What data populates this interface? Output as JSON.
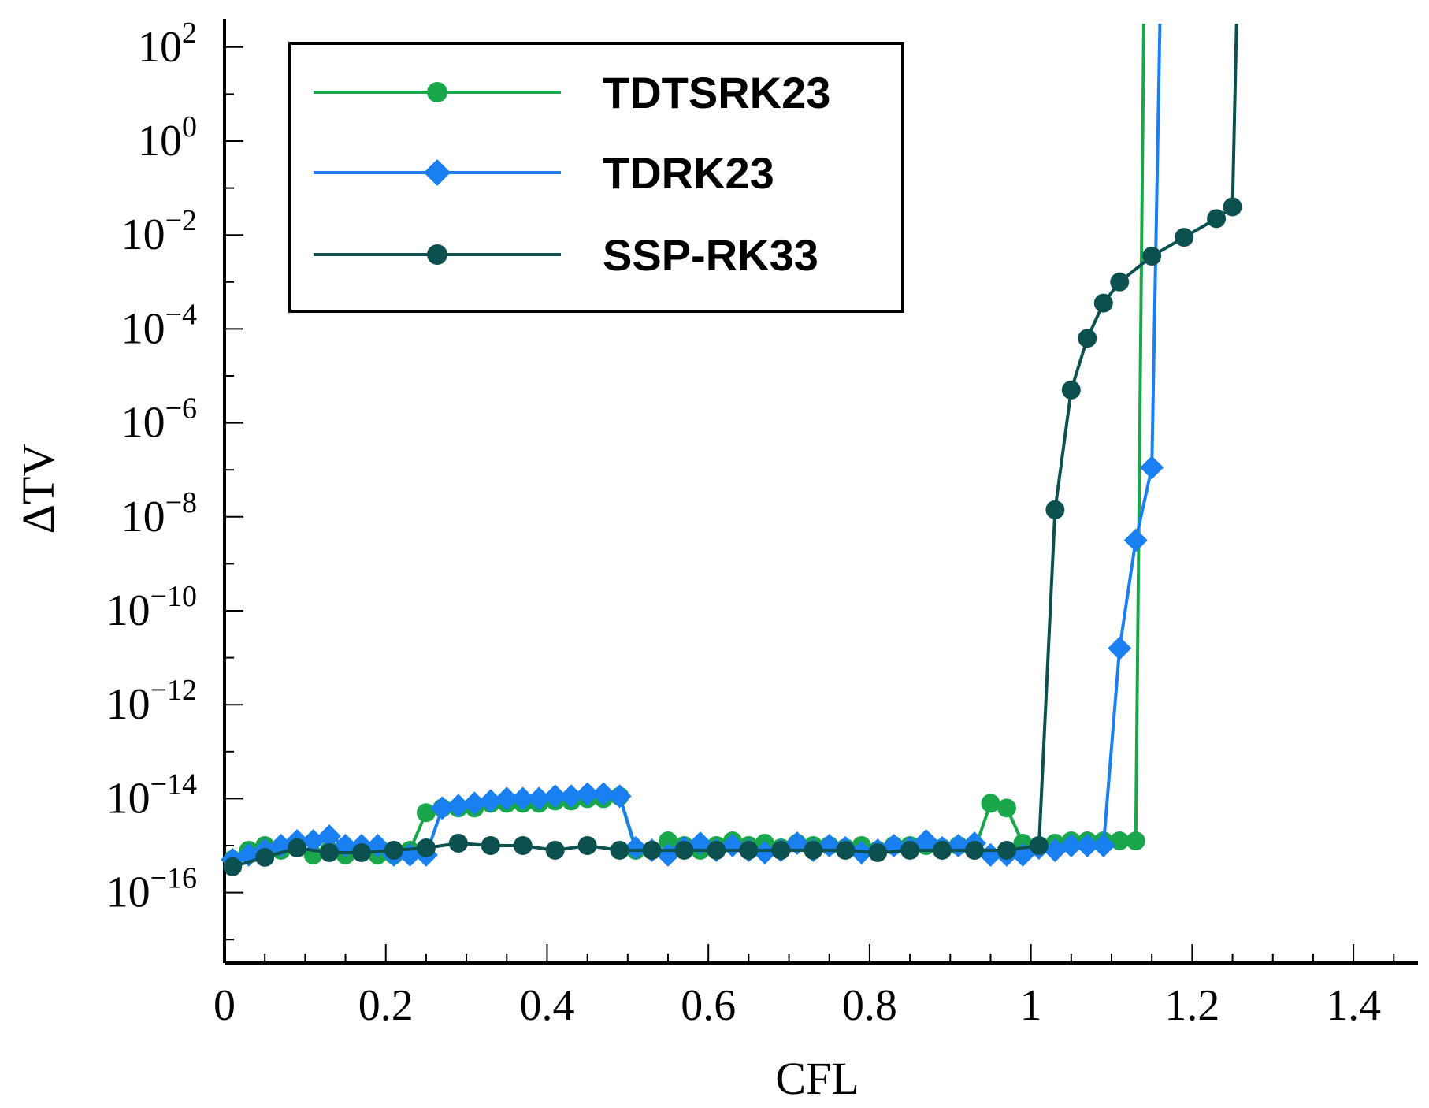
{
  "chart_data": {
    "type": "line",
    "title": "",
    "xlabel": "CFL",
    "ylabel": "ΔTV",
    "xlim": [
      0,
      1.48
    ],
    "ylim_log10": [
      -17.5,
      2.5
    ],
    "y_scale": "log",
    "grid": false,
    "legend_position": "top-left",
    "x_ticks": [
      {
        "value": 0,
        "label": "0"
      },
      {
        "value": 0.2,
        "label": "0.2"
      },
      {
        "value": 0.4,
        "label": "0.4"
      },
      {
        "value": 0.6,
        "label": "0.6"
      },
      {
        "value": 0.8,
        "label": "0.8"
      },
      {
        "value": 1.0,
        "label": "1"
      },
      {
        "value": 1.2,
        "label": "1.2"
      },
      {
        "value": 1.4,
        "label": "1.4"
      }
    ],
    "y_ticks": [
      {
        "exp": 2,
        "label_base": "10",
        "label_exp": "2"
      },
      {
        "exp": 0,
        "label_base": "10",
        "label_exp": "0"
      },
      {
        "exp": -2,
        "label_base": "10",
        "label_exp": "−2"
      },
      {
        "exp": -4,
        "label_base": "10",
        "label_exp": "−4"
      },
      {
        "exp": -6,
        "label_base": "10",
        "label_exp": "−6"
      },
      {
        "exp": -8,
        "label_base": "10",
        "label_exp": "−8"
      },
      {
        "exp": -10,
        "label_base": "10",
        "label_exp": "−10"
      },
      {
        "exp": -12,
        "label_base": "10",
        "label_exp": "−12"
      },
      {
        "exp": -14,
        "label_base": "10",
        "label_exp": "−14"
      },
      {
        "exp": -16,
        "label_base": "10",
        "label_exp": "−16"
      }
    ],
    "series": [
      {
        "name": "TDTSRK23",
        "color": "#1aa64b",
        "marker": "circle",
        "x": [
          0.01,
          0.03,
          0.05,
          0.07,
          0.09,
          0.11,
          0.13,
          0.15,
          0.17,
          0.19,
          0.21,
          0.23,
          0.25,
          0.27,
          0.29,
          0.31,
          0.33,
          0.35,
          0.37,
          0.39,
          0.41,
          0.43,
          0.45,
          0.47,
          0.49,
          0.51,
          0.53,
          0.55,
          0.57,
          0.59,
          0.61,
          0.63,
          0.65,
          0.67,
          0.69,
          0.71,
          0.73,
          0.75,
          0.77,
          0.79,
          0.81,
          0.83,
          0.85,
          0.87,
          0.89,
          0.91,
          0.93,
          0.95,
          0.97,
          0.99,
          1.01,
          1.03,
          1.05,
          1.07,
          1.09,
          1.11,
          1.13,
          1.14
        ],
        "log10_y": [
          -15.3,
          -15.1,
          -15.0,
          -15.1,
          -15.0,
          -15.2,
          -15.1,
          -15.2,
          -15.1,
          -15.2,
          -15.2,
          -15.1,
          -14.3,
          -14.2,
          -14.2,
          -14.2,
          -14.1,
          -14.1,
          -14.1,
          -14.1,
          -14.05,
          -14.05,
          -14.0,
          -14.0,
          -13.95,
          -15.1,
          -15.1,
          -14.9,
          -15.0,
          -15.1,
          -15.0,
          -14.9,
          -15.0,
          -14.95,
          -15.05,
          -14.95,
          -15.0,
          -15.0,
          -15.05,
          -15.0,
          -15.1,
          -15.0,
          -15.0,
          -15.0,
          -15.05,
          -15.0,
          -15.1,
          -14.1,
          -14.2,
          -14.95,
          -15.0,
          -14.95,
          -14.9,
          -14.9,
          -14.9,
          -14.9,
          -14.9,
          2.5
        ]
      },
      {
        "name": "TDRK23",
        "color": "#1a7ff0",
        "marker": "diamond",
        "x": [
          0.01,
          0.03,
          0.05,
          0.07,
          0.09,
          0.11,
          0.13,
          0.15,
          0.17,
          0.19,
          0.21,
          0.23,
          0.25,
          0.27,
          0.29,
          0.31,
          0.33,
          0.35,
          0.37,
          0.39,
          0.41,
          0.43,
          0.45,
          0.47,
          0.49,
          0.51,
          0.53,
          0.55,
          0.57,
          0.59,
          0.61,
          0.63,
          0.65,
          0.67,
          0.69,
          0.71,
          0.73,
          0.75,
          0.77,
          0.79,
          0.81,
          0.83,
          0.85,
          0.87,
          0.89,
          0.91,
          0.93,
          0.95,
          0.97,
          0.99,
          1.01,
          1.03,
          1.05,
          1.07,
          1.09,
          1.11,
          1.13,
          1.15,
          1.16
        ],
        "log10_y": [
          -15.3,
          -15.2,
          -15.1,
          -15.0,
          -14.9,
          -14.9,
          -14.8,
          -15.0,
          -15.0,
          -15.0,
          -15.2,
          -15.2,
          -15.2,
          -14.2,
          -14.15,
          -14.1,
          -14.05,
          -14.0,
          -14.0,
          -14.0,
          -13.95,
          -13.95,
          -13.9,
          -13.9,
          -13.95,
          -15.05,
          -15.1,
          -15.2,
          -15.05,
          -14.95,
          -15.1,
          -15.0,
          -15.1,
          -15.15,
          -15.1,
          -14.95,
          -15.1,
          -15.0,
          -15.05,
          -15.15,
          -15.1,
          -15.0,
          -15.05,
          -14.9,
          -15.05,
          -15.0,
          -14.95,
          -15.2,
          -15.2,
          -15.2,
          -15.05,
          -15.1,
          -15.0,
          -15.0,
          -15.0,
          -10.8,
          -8.5,
          -6.95,
          2.5
        ]
      },
      {
        "name": "SSP-RK33",
        "color": "#0d5050",
        "marker": "circle",
        "x": [
          0.01,
          0.05,
          0.09,
          0.13,
          0.17,
          0.21,
          0.25,
          0.29,
          0.33,
          0.37,
          0.41,
          0.45,
          0.49,
          0.53,
          0.57,
          0.61,
          0.65,
          0.69,
          0.73,
          0.77,
          0.81,
          0.85,
          0.89,
          0.93,
          0.97,
          1.01,
          1.03,
          1.05,
          1.07,
          1.09,
          1.11,
          1.15,
          1.19,
          1.23,
          1.25,
          1.255
        ],
        "log10_y": [
          -15.45,
          -15.25,
          -15.05,
          -15.15,
          -15.15,
          -15.1,
          -15.05,
          -14.95,
          -15.0,
          -15.0,
          -15.1,
          -15.0,
          -15.1,
          -15.1,
          -15.1,
          -15.1,
          -15.1,
          -15.1,
          -15.1,
          -15.1,
          -15.15,
          -15.1,
          -15.1,
          -15.1,
          -15.1,
          -15.0,
          -7.85,
          -5.3,
          -4.2,
          -3.45,
          -3.0,
          -2.45,
          -2.05,
          -1.65,
          -1.4,
          2.5
        ]
      }
    ]
  }
}
